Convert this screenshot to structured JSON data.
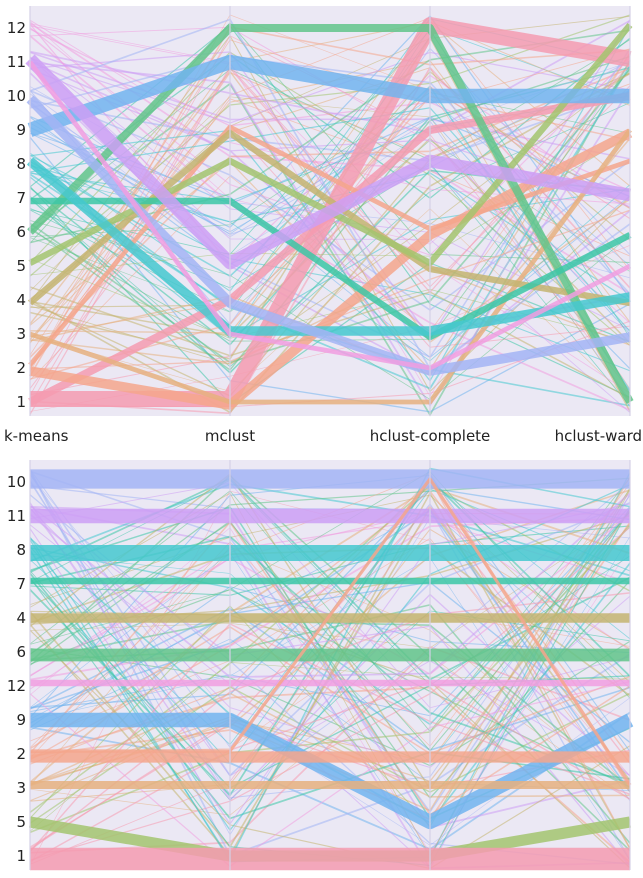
{
  "colors": {
    "1": "#f59bb0",
    "2": "#f4a68c",
    "3": "#e6b07f",
    "4": "#c4b470",
    "5": "#a3c46f",
    "6": "#62c48a",
    "7": "#3cc7a6",
    "8": "#45c8cf",
    "9": "#72b4ee",
    "10": "#a3b4f4",
    "11": "#cd9ff4",
    "12": "#f19ee0"
  },
  "chart_data": [
    {
      "type": "parallel-coordinates",
      "axes": [
        "k-means",
        "mclust",
        "hclust-complete",
        "hclust-ward"
      ],
      "axis_order": [
        12,
        11,
        10,
        9,
        8,
        7,
        6,
        5,
        4,
        3,
        2,
        1
      ],
      "bundles": [
        {
          "cluster": 1,
          "path": [
            1,
            1,
            12,
            11
          ],
          "weight": 10
        },
        {
          "cluster": 1,
          "path": [
            1,
            4,
            9,
            10
          ],
          "weight": 5
        },
        {
          "cluster": 2,
          "path": [
            2,
            1,
            6,
            9
          ],
          "weight": 6
        },
        {
          "cluster": 2,
          "path": [
            2,
            9,
            6,
            8
          ],
          "weight": 3
        },
        {
          "cluster": 3,
          "path": [
            3,
            1,
            1,
            9
          ],
          "weight": 3
        },
        {
          "cluster": 4,
          "path": [
            4,
            9,
            5,
            4
          ],
          "weight": 4
        },
        {
          "cluster": 5,
          "path": [
            5,
            8,
            5,
            12
          ],
          "weight": 4
        },
        {
          "cluster": 6,
          "path": [
            6,
            12,
            12,
            1
          ],
          "weight": 5
        },
        {
          "cluster": 7,
          "path": [
            7,
            7,
            3,
            6
          ],
          "weight": 4
        },
        {
          "cluster": 8,
          "path": [
            8,
            3,
            3,
            4
          ],
          "weight": 6
        },
        {
          "cluster": 9,
          "path": [
            9,
            11,
            10,
            10
          ],
          "weight": 9
        },
        {
          "cluster": 10,
          "path": [
            10,
            4,
            2,
            3
          ],
          "weight": 6
        },
        {
          "cluster": 11,
          "path": [
            11,
            5,
            8,
            7
          ],
          "weight": 8
        },
        {
          "cluster": 12,
          "path": [
            11,
            3,
            2,
            5
          ],
          "weight": 3
        }
      ]
    },
    {
      "type": "parallel-coordinates",
      "axes": [
        "k-means",
        "mclust",
        "hclust-complete",
        "hclust-ward"
      ],
      "axis_order": [
        10,
        11,
        8,
        7,
        4,
        6,
        12,
        9,
        2,
        3,
        5,
        1
      ],
      "bundles": [
        {
          "cluster": 10,
          "path": [
            10,
            10,
            10,
            10
          ],
          "weight": 12
        },
        {
          "cluster": 11,
          "path": [
            11,
            11,
            11,
            11
          ],
          "weight": 9
        },
        {
          "cluster": 8,
          "path": [
            8,
            8,
            8,
            8
          ],
          "weight": 10
        },
        {
          "cluster": 7,
          "path": [
            7,
            7,
            7,
            7
          ],
          "weight": 4
        },
        {
          "cluster": 4,
          "path": [
            4,
            4,
            4,
            4
          ],
          "weight": 6
        },
        {
          "cluster": 6,
          "path": [
            6,
            6,
            6,
            6
          ],
          "weight": 8
        },
        {
          "cluster": 12,
          "path": [
            12,
            12,
            12,
            12
          ],
          "weight": 4
        },
        {
          "cluster": 9,
          "path": [
            9,
            9,
            5,
            9
          ],
          "weight": 9
        },
        {
          "cluster": 2,
          "path": [
            2,
            2,
            2,
            2
          ],
          "weight": 7
        },
        {
          "cluster": 3,
          "path": [
            3,
            3,
            3,
            3
          ],
          "weight": 5
        },
        {
          "cluster": 5,
          "path": [
            5,
            1,
            1,
            5
          ],
          "weight": 7
        },
        {
          "cluster": 1,
          "path": [
            1,
            1,
            1,
            1
          ],
          "weight": 14
        },
        {
          "cluster": 2,
          "path": [
            2,
            2,
            10,
            3
          ],
          "weight": 2
        }
      ]
    }
  ]
}
